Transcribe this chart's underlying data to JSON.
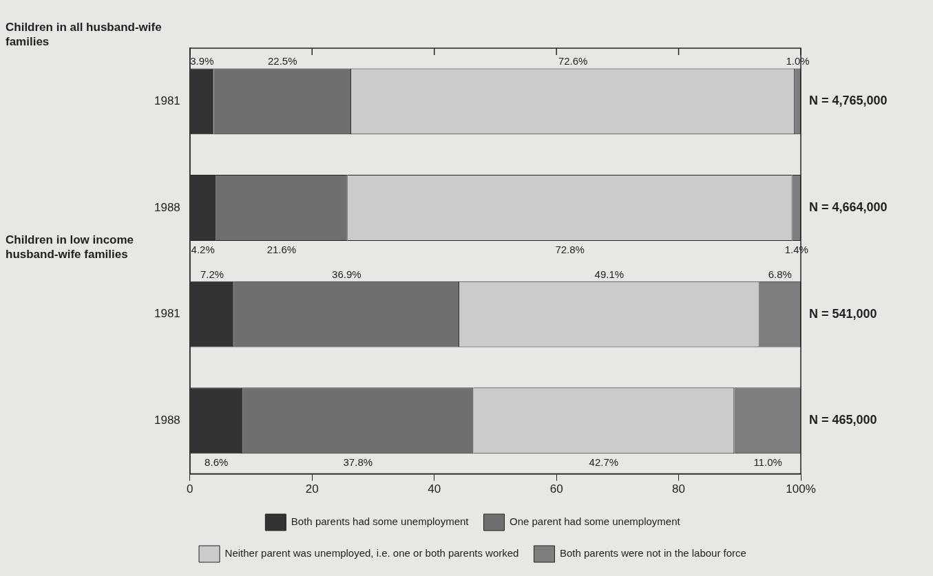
{
  "chart_data": {
    "type": "bar",
    "orientation": "horizontal",
    "stacked": true,
    "categories": [
      "1981",
      "1988",
      "1981",
      "1988"
    ],
    "series": [
      {
        "name": "Both parents had some unemployment",
        "color": "#333333",
        "values": [
          3.9,
          4.2,
          7.2,
          8.6
        ],
        "value_labels": [
          "3.9%",
          "4.2%",
          "7.2%",
          "8.6%"
        ]
      },
      {
        "name": "One parent had some unemployment",
        "color": "#6f6f6f",
        "values": [
          22.5,
          21.6,
          36.9,
          37.8
        ],
        "value_labels": [
          "22.5%",
          "21.6%",
          "36.9%",
          "37.8%"
        ]
      },
      {
        "name": "Neither parent was unemployed, i.e. one or both parents worked",
        "color": "#cbcbcb",
        "values": [
          72.6,
          72.8,
          49.1,
          42.7
        ],
        "value_labels": [
          "72.6%",
          "72.8%",
          "49.1%",
          "42.7%"
        ]
      },
      {
        "name": "Both parents were not in the labour force",
        "color": "#7e7e7e",
        "values": [
          1.0,
          1.4,
          6.8,
          11.0
        ],
        "value_labels": [
          "1.0%",
          "1.4%",
          "6.8%",
          "11.0%"
        ]
      }
    ],
    "xlim": [
      0,
      100
    ],
    "xticks": [
      0,
      20,
      40,
      60,
      80,
      {
        "value": 100,
        "label": "100%"
      }
    ],
    "grid": false,
    "legend": "bottom",
    "annotations": [
      "Children in all husband-wife families",
      "N = 4,765,000",
      "N = 4,664,000",
      "Children in low income husband-wife families",
      "N = 541,000",
      "N = 465,000"
    ]
  }
}
